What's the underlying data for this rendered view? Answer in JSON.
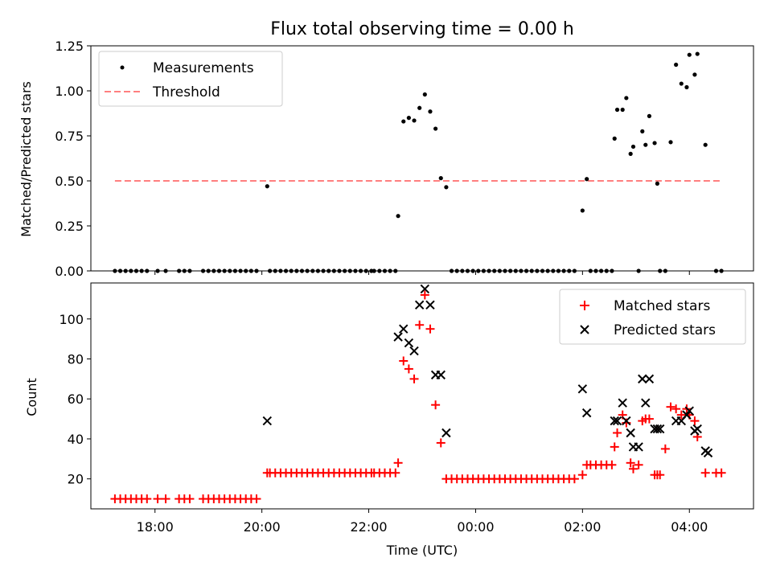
{
  "chart_data": [
    {
      "type": "scatter",
      "title": "Flux total observing time = 0.00 h",
      "xlabel": "",
      "ylabel": "Matched/Predicted stars",
      "xlim": [
        16.8,
        29.2
      ],
      "ylim": [
        0,
        1.25
      ],
      "yticks": [
        0.0,
        0.25,
        0.5,
        0.75,
        1.0,
        1.25
      ],
      "ytick_labels": [
        "0.00",
        "0.25",
        "0.50",
        "0.75",
        "1.00",
        "1.25"
      ],
      "legend": {
        "position": "top-left",
        "entries": [
          "Measurements",
          "Threshold"
        ]
      },
      "threshold": {
        "name": "Threshold",
        "y": 0.5,
        "x_range": [
          17.25,
          28.6
        ],
        "color": "#ff7f7f"
      },
      "series": [
        {
          "name": "Measurements",
          "color": "#000000",
          "x": [
            17.25,
            17.35,
            17.45,
            17.55,
            17.65,
            17.75,
            17.85,
            18.05,
            18.2,
            18.45,
            18.55,
            18.65,
            18.9,
            19.0,
            19.1,
            19.2,
            19.3,
            19.4,
            19.5,
            19.6,
            19.7,
            19.8,
            19.9,
            20.1,
            20.15,
            20.25,
            20.35,
            20.45,
            20.55,
            20.65,
            20.75,
            20.85,
            20.95,
            21.05,
            21.15,
            21.25,
            21.35,
            21.45,
            21.55,
            21.65,
            21.75,
            21.85,
            21.95,
            22.05,
            22.1,
            22.2,
            22.3,
            22.4,
            22.5,
            22.55,
            22.65,
            22.75,
            22.85,
            22.95,
            23.05,
            23.15,
            23.25,
            23.35,
            23.45,
            23.55,
            23.65,
            23.75,
            23.85,
            23.95,
            24.05,
            24.15,
            24.25,
            24.35,
            24.45,
            24.55,
            24.65,
            24.75,
            24.85,
            24.95,
            25.05,
            25.15,
            25.25,
            25.35,
            25.45,
            25.55,
            25.65,
            25.75,
            25.85,
            26.0,
            26.08,
            26.15,
            26.25,
            26.35,
            26.45,
            26.55,
            26.6,
            26.65,
            26.75,
            26.82,
            26.9,
            26.95,
            27.05,
            27.12,
            27.18,
            27.25,
            27.35,
            27.4,
            27.45,
            27.55,
            27.65,
            27.75,
            27.85,
            27.95,
            28.0,
            28.1,
            28.15,
            28.3,
            28.5,
            28.6
          ],
          "y": [
            0,
            0,
            0,
            0,
            0,
            0,
            0,
            0,
            0,
            0,
            0,
            0,
            0,
            0,
            0,
            0,
            0,
            0,
            0,
            0,
            0,
            0,
            0,
            0.47,
            0,
            0,
            0,
            0,
            0,
            0,
            0,
            0,
            0,
            0,
            0,
            0,
            0,
            0,
            0,
            0,
            0,
            0,
            0,
            0,
            0,
            0,
            0,
            0,
            0,
            0.305,
            0.83,
            0.85,
            0.835,
            0.905,
            0.98,
            0.885,
            0.79,
            0.515,
            0.465,
            0,
            0,
            0,
            0,
            0,
            0,
            0,
            0,
            0,
            0,
            0,
            0,
            0,
            0,
            0,
            0,
            0,
            0,
            0,
            0,
            0,
            0,
            0,
            0,
            0.335,
            0.51,
            0,
            0,
            0,
            0,
            0,
            0.735,
            0.895,
            0.895,
            0.96,
            0.65,
            0.69,
            0,
            0.775,
            0.7,
            0.86,
            0.71,
            0.485,
            0,
            0,
            0.715,
            1.145,
            1.04,
            1.02,
            1.2,
            1.09,
            1.205,
            0.7,
            0,
            0
          ]
        }
      ]
    },
    {
      "type": "scatter",
      "title": "",
      "xlabel": "Time (UTC)",
      "ylabel": "Count",
      "xlim": [
        16.8,
        29.2
      ],
      "ylim": [
        5,
        118
      ],
      "yticks": [
        20,
        40,
        60,
        80,
        100
      ],
      "ytick_labels": [
        "20",
        "40",
        "60",
        "80",
        "100"
      ],
      "xticks": [
        18,
        20,
        22,
        24,
        26,
        28
      ],
      "xtick_labels": [
        "18:00",
        "20:00",
        "22:00",
        "00:00",
        "02:00",
        "04:00"
      ],
      "legend": {
        "position": "top-right",
        "entries": [
          "Matched stars",
          "Predicted stars"
        ]
      },
      "series": [
        {
          "name": "Matched stars",
          "marker": "plus",
          "color": "#ff0000",
          "x": [
            17.25,
            17.35,
            17.45,
            17.55,
            17.65,
            17.75,
            17.85,
            18.05,
            18.2,
            18.45,
            18.55,
            18.65,
            18.9,
            19.0,
            19.1,
            19.2,
            19.3,
            19.4,
            19.5,
            19.6,
            19.7,
            19.8,
            19.9,
            20.1,
            20.15,
            20.25,
            20.35,
            20.45,
            20.55,
            20.65,
            20.75,
            20.85,
            20.95,
            21.05,
            21.15,
            21.25,
            21.35,
            21.45,
            21.55,
            21.65,
            21.75,
            21.85,
            21.95,
            22.05,
            22.1,
            22.2,
            22.3,
            22.4,
            22.5,
            22.55,
            22.65,
            22.75,
            22.85,
            22.95,
            23.05,
            23.15,
            23.25,
            23.35,
            23.45,
            23.55,
            23.65,
            23.75,
            23.85,
            23.95,
            24.05,
            24.15,
            24.25,
            24.35,
            24.45,
            24.55,
            24.65,
            24.75,
            24.85,
            24.95,
            25.05,
            25.15,
            25.25,
            25.35,
            25.45,
            25.55,
            25.65,
            25.75,
            25.85,
            26.0,
            26.08,
            26.15,
            26.25,
            26.35,
            26.45,
            26.55,
            26.6,
            26.65,
            26.75,
            26.82,
            26.9,
            26.95,
            27.05,
            27.12,
            27.18,
            27.25,
            27.35,
            27.4,
            27.45,
            27.55,
            27.65,
            27.75,
            27.85,
            27.95,
            28.0,
            28.1,
            28.15,
            28.3,
            28.5,
            28.6
          ],
          "y": [
            10,
            10,
            10,
            10,
            10,
            10,
            10,
            10,
            10,
            10,
            10,
            10,
            10,
            10,
            10,
            10,
            10,
            10,
            10,
            10,
            10,
            10,
            10,
            23,
            23,
            23,
            23,
            23,
            23,
            23,
            23,
            23,
            23,
            23,
            23,
            23,
            23,
            23,
            23,
            23,
            23,
            23,
            23,
            23,
            23,
            23,
            23,
            23,
            23,
            28,
            79,
            75,
            70,
            97,
            112,
            95,
            57,
            38,
            20,
            20,
            20,
            20,
            20,
            20,
            20,
            20,
            20,
            20,
            20,
            20,
            20,
            20,
            20,
            20,
            20,
            20,
            20,
            20,
            20,
            20,
            20,
            20,
            20,
            22,
            27,
            27,
            27,
            27,
            27,
            27,
            36,
            43,
            52,
            48,
            28,
            25,
            27,
            49,
            50,
            50,
            22,
            22,
            22,
            35,
            56,
            55,
            52,
            55,
            52,
            49,
            41,
            23,
            23,
            23
          ]
        },
        {
          "name": "Predicted stars",
          "marker": "x",
          "color": "#000000",
          "x": [
            20.1,
            22.55,
            22.65,
            22.75,
            22.85,
            22.95,
            23.05,
            23.15,
            23.25,
            23.35,
            23.45,
            26.0,
            26.08,
            26.6,
            26.65,
            26.75,
            26.82,
            26.9,
            26.95,
            27.05,
            27.12,
            27.18,
            27.25,
            27.35,
            27.4,
            27.45,
            27.75,
            27.85,
            27.95,
            28.0,
            28.1,
            28.15,
            28.3,
            28.35
          ],
          "y": [
            49,
            91,
            95,
            88,
            84,
            107,
            115,
            107,
            72,
            72,
            43,
            65,
            53,
            49,
            49,
            58,
            49,
            43,
            36,
            36,
            70,
            58,
            70,
            45,
            45,
            45,
            49,
            49,
            52,
            54,
            44,
            45,
            34,
            33
          ]
        }
      ]
    }
  ]
}
